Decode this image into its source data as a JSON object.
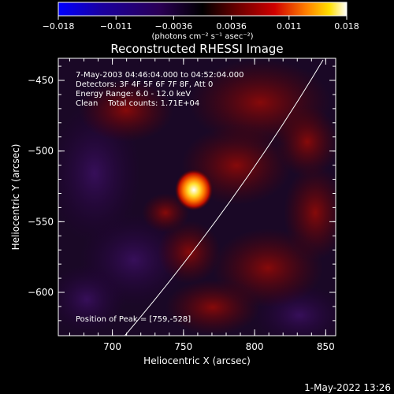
{
  "colorbar": {
    "ticks": [
      "−0.018",
      "−0.011",
      "−0.0036",
      "0.0036",
      "0.011",
      "0.018"
    ],
    "units": "(photons cm⁻² s⁻¹ asec⁻²)",
    "colormap": [
      "#0000ff",
      "#1a00a0",
      "#2a0055",
      "#000000",
      "#6a0000",
      "#d00000",
      "#ff8000",
      "#ffe000",
      "#ffffff"
    ]
  },
  "title": "Reconstructed RHESSI Image",
  "info": {
    "line1": "7-May-2003 04:46:04.000 to 04:52:04.000",
    "line2": "Detectors: 3F 4F 5F 6F 7F 8F, Att 0",
    "line3": "Energy Range: 6.0 - 12.0 keV",
    "line4": "Clean    Total counts: 1.71E+04"
  },
  "peak_label": "Position of Peak = [759,-528]",
  "axes": {
    "xlabel": "Heliocentric X (arcsec)",
    "ylabel": "Heliocentric Y (arcsec)",
    "xticks": [
      "700",
      "750",
      "800",
      "850"
    ],
    "yticks": [
      "−450",
      "−500",
      "−550",
      "−600"
    ]
  },
  "timestamp": "1-May-2022 13:26"
}
